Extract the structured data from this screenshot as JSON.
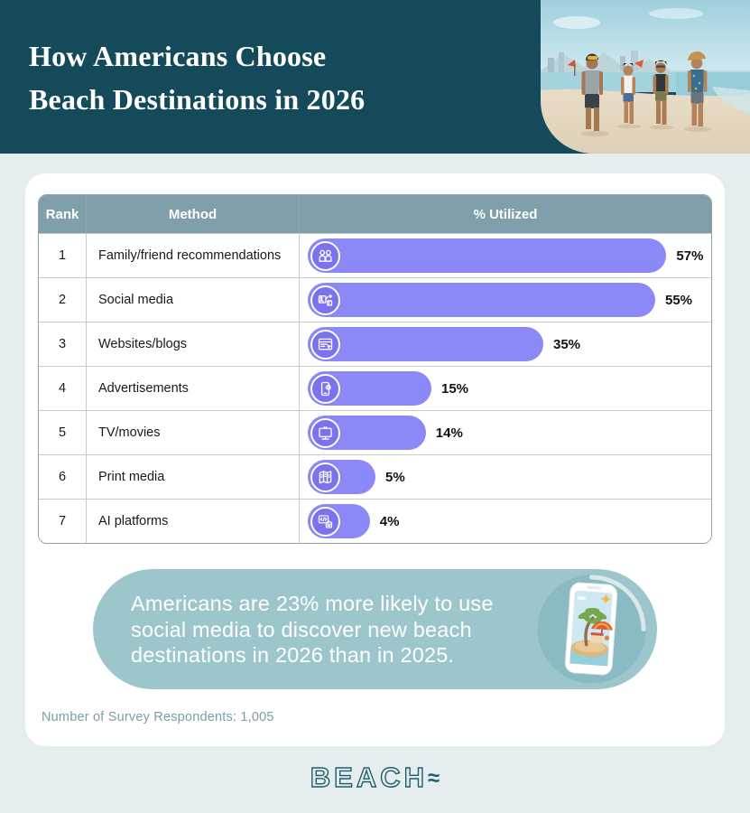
{
  "page": {
    "background": "#E5EDEE",
    "card_background": "#FFFFFF"
  },
  "header": {
    "title_line1": "How Americans Choose",
    "title_line2": "Beach Destinations in 2026",
    "background": "#144A5A",
    "photo": "friends-walking-on-beach-photo"
  },
  "table": {
    "header_bg": "#7FA0AA",
    "bar_color": "#8B88F8",
    "bar_icon_bg": "#7A73F0",
    "headers": {
      "rank": "Rank",
      "method": "Method",
      "utilized": "% Utilized"
    },
    "rows": [
      {
        "rank": "1",
        "method": "Family/friend recommendations",
        "value": 57,
        "pct_label": "57%",
        "icon": "people-icon"
      },
      {
        "rank": "2",
        "method": "Social media",
        "value": 55,
        "pct_label": "55%",
        "icon": "social-media-icon"
      },
      {
        "rank": "3",
        "method": "Websites/blogs",
        "value": 35,
        "pct_label": "35%",
        "icon": "browser-icon"
      },
      {
        "rank": "4",
        "method": "Advertisements",
        "value": 15,
        "pct_label": "15%",
        "icon": "mobile-ad-icon"
      },
      {
        "rank": "5",
        "method": "TV/movies",
        "value": 14,
        "pct_label": "14%",
        "icon": "tv-icon"
      },
      {
        "rank": "6",
        "method": "Print media",
        "value": 5,
        "pct_label": "5%",
        "icon": "print-media-icon"
      },
      {
        "rank": "7",
        "method": "AI platforms",
        "value": 4,
        "pct_label": "4%",
        "icon": "ai-icon"
      }
    ]
  },
  "chart_data": {
    "type": "bar",
    "title": "How Americans Choose Beach Destinations in 2026",
    "categories": [
      "Family/friend recommendations",
      "Social media",
      "Websites/blogs",
      "Advertisements",
      "TV/movies",
      "Print media",
      "AI platforms"
    ],
    "values": [
      57,
      55,
      35,
      15,
      14,
      5,
      4
    ],
    "value_labels": [
      "57%",
      "55%",
      "35%",
      "15%",
      "14%",
      "5%",
      "4%"
    ],
    "xlabel": "% Utilized",
    "ylabel": "Method",
    "xlim": [
      0,
      60
    ],
    "orientation": "horizontal",
    "grid": false,
    "legend": false,
    "annotation": "Americans are 23% more likely to use social media to discover new beach destinations in 2026 than in 2025.",
    "sample_note": "Number of Survey Respondents: 1,005"
  },
  "callout": {
    "background": "#9CC6CB",
    "text": "Americans are 23% more likely to use social media to discover new beach destinations in 2026 than in 2025.",
    "illustration": "phone-beach-island-illustration"
  },
  "footer": {
    "respondents_note": "Number of Survey Respondents: 1,005",
    "logo_word": "BEACH",
    "logo_wave": "≈",
    "logo_color": "#1D5E6E"
  }
}
